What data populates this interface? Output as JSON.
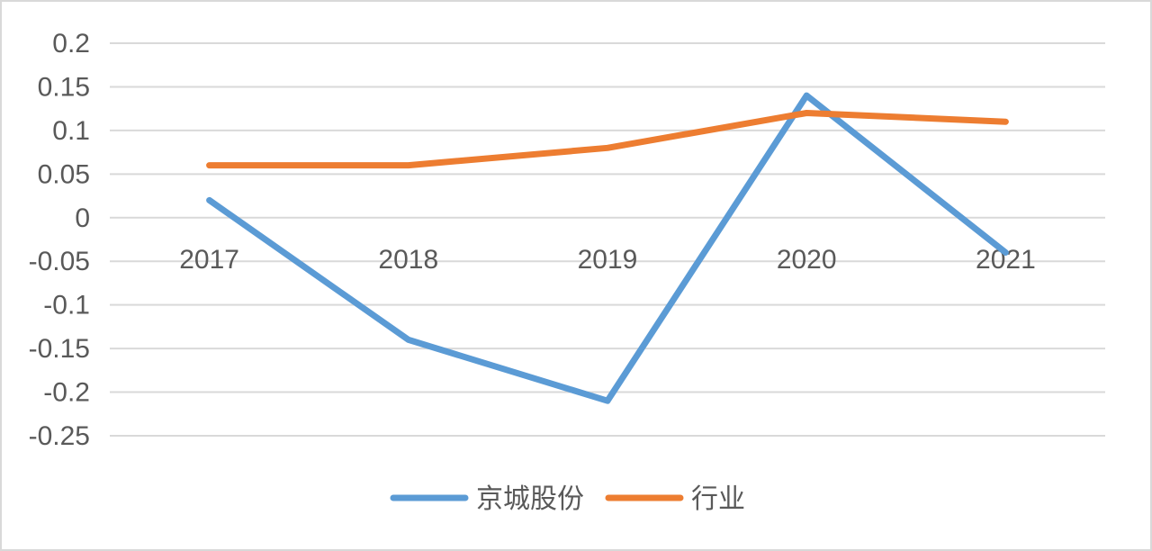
{
  "chart_data": {
    "type": "line",
    "categories": [
      "2017",
      "2018",
      "2019",
      "2020",
      "2021"
    ],
    "series": [
      {
        "name": "京城股份",
        "color": "#5b9bd5",
        "values": [
          0.02,
          -0.14,
          -0.21,
          0.14,
          -0.04
        ]
      },
      {
        "name": "行业",
        "color": "#ed7d31",
        "values": [
          0.06,
          0.06,
          0.08,
          0.12,
          0.11
        ]
      }
    ],
    "ylim": [
      -0.25,
      0.2
    ],
    "y_ticks": [
      "0.2",
      "0.15",
      "0.1",
      "0.05",
      "0",
      "-0.05",
      "-0.1",
      "-0.15",
      "-0.2",
      "-0.25"
    ],
    "grid": true,
    "legend_position": "bottom",
    "title": "",
    "xlabel": "",
    "ylabel": ""
  }
}
